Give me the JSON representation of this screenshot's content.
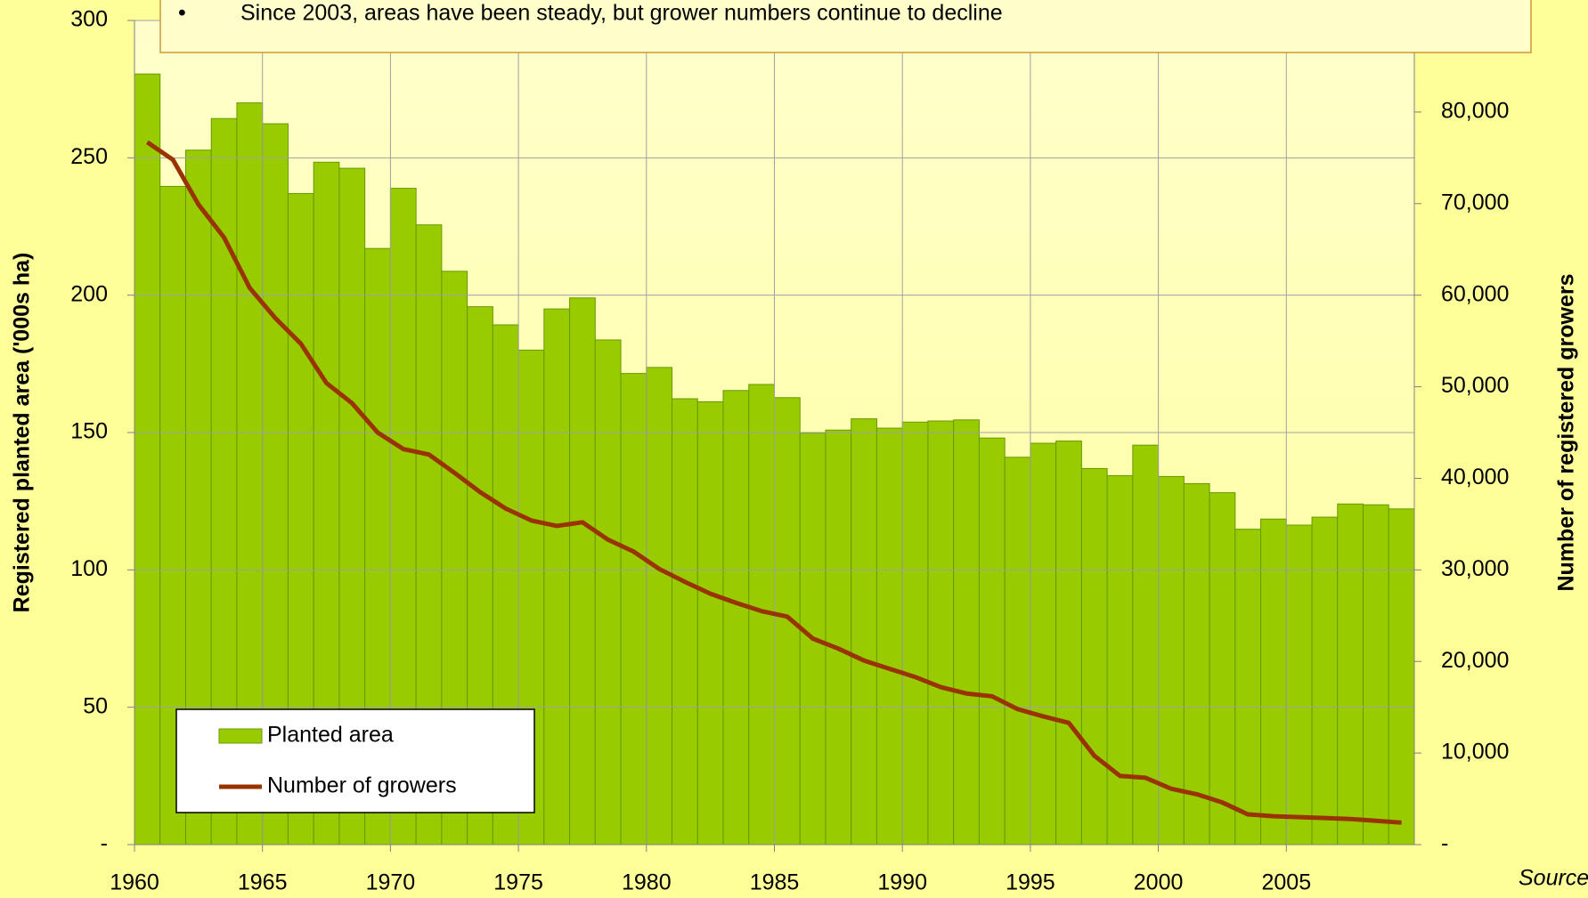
{
  "chart_data": {
    "type": "bar-line",
    "annotations": [
      "Since 2003, areas have been steady, but grower numbers continue to decline",
      "Source"
    ],
    "y_label": "Registered planted area ('000s ha)",
    "y2_label": "Number of registered growers",
    "x": [
      1960,
      1961,
      1962,
      1963,
      1964,
      1965,
      1966,
      1967,
      1968,
      1969,
      1970,
      1971,
      1972,
      1973,
      1974,
      1975,
      1976,
      1977,
      1978,
      1979,
      1980,
      1981,
      1982,
      1983,
      1984,
      1985,
      1986,
      1987,
      1988,
      1989,
      1990,
      1991,
      1992,
      1993,
      1994,
      1995,
      1996,
      1997,
      1998,
      1999,
      2000,
      2001,
      2002,
      2003,
      2004,
      2005,
      2006,
      2007,
      2008,
      2009
    ],
    "xlim": [
      1960,
      2010
    ],
    "xticks": [
      1960,
      1965,
      1970,
      1975,
      1980,
      1985,
      1990,
      1995,
      2000,
      2005
    ],
    "ylim": [
      0,
      300
    ],
    "yticks": [
      {
        "value": 0,
        "label": "-"
      },
      50,
      100,
      150,
      200,
      250,
      300
    ],
    "y2lim": [
      0,
      90000
    ],
    "y2ticks": [
      {
        "value": 0,
        "label": "-"
      },
      {
        "value": 10000,
        "label": "10,000"
      },
      {
        "value": 20000,
        "label": "20,000"
      },
      {
        "value": 30000,
        "label": "30,000"
      },
      {
        "value": 40000,
        "label": "40,000"
      },
      {
        "value": 50000,
        "label": "50,000"
      },
      {
        "value": 60000,
        "label": "60,000"
      },
      {
        "value": 70000,
        "label": "70,000"
      },
      {
        "value": 80000,
        "label": "80,000"
      }
    ],
    "grid": true,
    "legend": "lower left",
    "series": [
      {
        "name": "Planted area",
        "type": "bar",
        "color": "#99cc00",
        "values": [
          280.5,
          239.6,
          252.8,
          264.3,
          270,
          262.4,
          237,
          248.4,
          246.2,
          217,
          238.9,
          225.6,
          208.7,
          195.8,
          189.2,
          180,
          195,
          199,
          183.7,
          171.5,
          173.7,
          162.3,
          161.2,
          165.3,
          167.5,
          162.7,
          149.8,
          150.9,
          155,
          151.6,
          153.8,
          154.2,
          154.6,
          148,
          141,
          146.1,
          146.9,
          136.9,
          134.3,
          145.4,
          134,
          131.4,
          128.1,
          114.8,
          118.5,
          116.3,
          119.2,
          124,
          123.7,
          122.2
        ]
      },
      {
        "name": "Number of growers",
        "type": "line",
        "axis": "y2",
        "color": "#993300",
        "values": [
          76700,
          74800,
          69900,
          66300,
          60800,
          57500,
          54700,
          50400,
          48200,
          45000,
          43200,
          42600,
          40600,
          38500,
          36700,
          35400,
          34800,
          35200,
          33300,
          32000,
          30100,
          28700,
          27400,
          26400,
          25500,
          24900,
          22500,
          21400,
          20100,
          19200,
          18300,
          17200,
          16500,
          16200,
          14800,
          14000,
          13300,
          9700,
          7500,
          7300,
          6100,
          5500,
          4600,
          3300,
          3100,
          3000,
          2900,
          2800,
          2600,
          2400
        ]
      }
    ]
  }
}
